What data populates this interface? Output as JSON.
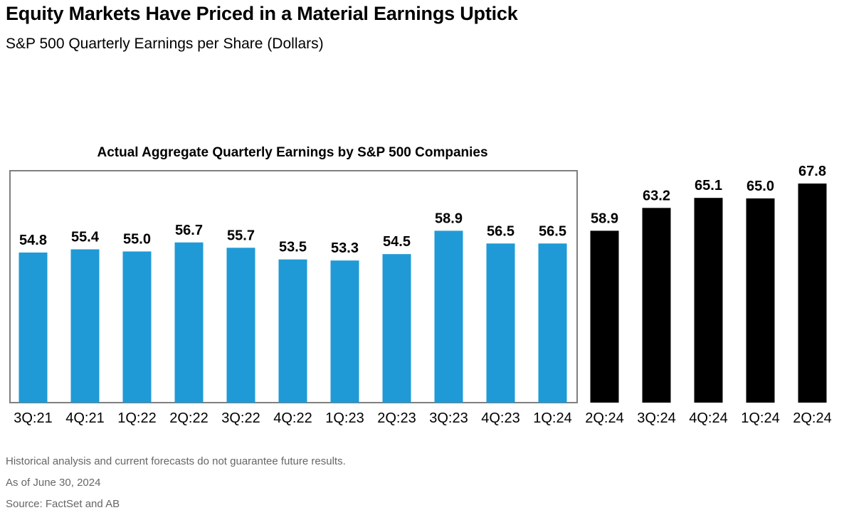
{
  "title": "Equity Markets Have Priced in a Material Earnings Uptick",
  "subtitle": "S&P 500 Quarterly Earnings per Share (Dollars)",
  "chart_data": {
    "type": "bar",
    "categories": [
      "3Q:21",
      "4Q:21",
      "1Q:22",
      "2Q:22",
      "3Q:22",
      "4Q:22",
      "1Q:23",
      "2Q:23",
      "3Q:23",
      "4Q:23",
      "1Q:24",
      "2Q:24",
      "3Q:24",
      "4Q:24",
      "1Q:24",
      "2Q:24"
    ],
    "values": [
      54.8,
      55.4,
      55.0,
      56.7,
      55.7,
      53.5,
      53.3,
      54.5,
      58.9,
      56.5,
      56.5,
      58.9,
      63.2,
      65.1,
      65.0,
      67.8
    ],
    "value_labels": [
      "54.8",
      "55.4",
      "55.0",
      "56.7",
      "55.7",
      "53.5",
      "53.3",
      "54.5",
      "58.9",
      "56.5",
      "56.5",
      "58.9",
      "63.2",
      "65.1",
      "65.0",
      "67.8"
    ],
    "actual_count": 11,
    "actual_label": "Actual Aggregate Quarterly Earnings by S&P 500 Companies",
    "colors": {
      "actual": "#1f9ad6",
      "forecast": "#000000",
      "box": "#7f7f7f"
    },
    "ylim": [
      0,
      70
    ],
    "grid": false
  },
  "footnotes": {
    "disclaimer": "Historical analysis and current forecasts do not guarantee future results.",
    "as_of": "As of June 30, 2024",
    "source": "Source: FactSet and AB"
  }
}
